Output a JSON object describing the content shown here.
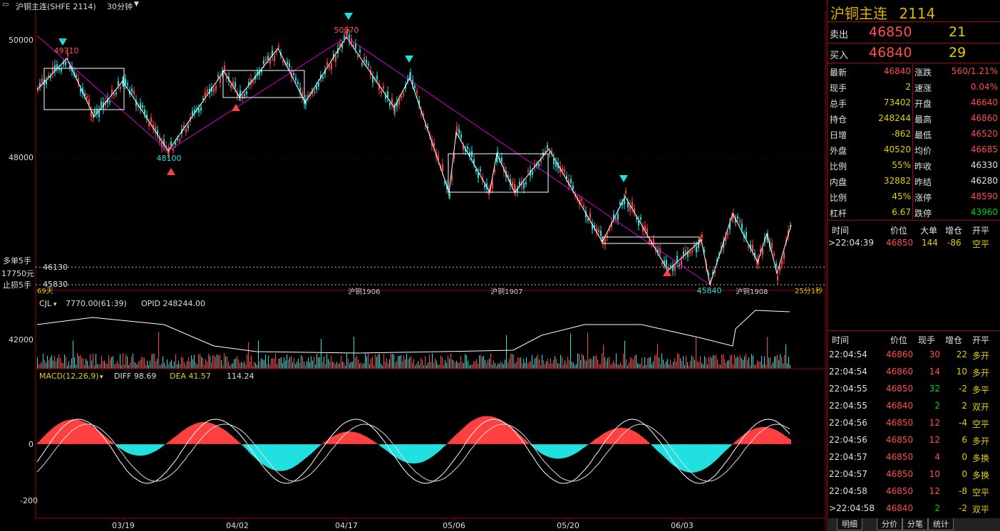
{
  "topbar": {
    "icon": "window-menu-icon",
    "symbol": "沪铜主连(SHFE 2114)",
    "period": "30分钟",
    "period_arrow": "chevron-down-icon"
  },
  "price_axis": {
    "labels": [
      "50000",
      "48000"
    ]
  },
  "annotations": {
    "high_label": "50070",
    "label_49710": "49710",
    "label_48100": "48100",
    "label_45840": "45840",
    "order_long": "多单5手",
    "order_amount": "17750元",
    "order_stop": "止损5手",
    "level_46130": "46130",
    "level_45830": "45830",
    "contract_1906": "沪铜1906",
    "contract_1907": "沪铜1907",
    "contract_1908": "沪铜1908",
    "days": "69天",
    "countdown": "25分1秒"
  },
  "volume": {
    "indicator": "CJL",
    "value": "7770.00(61:39)",
    "opid": "OPID 248244.00",
    "axis_label": "42000"
  },
  "macd": {
    "indicator": "MACD(12,26,9)",
    "diff": "DIFF 98.69",
    "dea": "DEA 41.57",
    "macd_value": "114.24",
    "axis_labels": [
      "0",
      "-200"
    ]
  },
  "date_axis": [
    "03/19",
    "04/02",
    "04/17",
    "05/06",
    "05/20",
    "06/03"
  ],
  "quote": {
    "title": "沪铜主连",
    "code": "2114",
    "ask_label": "卖出",
    "ask_price": "46850",
    "ask_vol": "21",
    "bid_label": "买入",
    "bid_price": "46840",
    "bid_vol": "29",
    "stats": [
      {
        "l1": "最新",
        "v1": "46840",
        "c1": "red",
        "l2": "涨跌",
        "v2": "560/1.21%",
        "c2": "red"
      },
      {
        "l1": "现手",
        "v1": "2",
        "c1": "yel",
        "l2": "速涨",
        "v2": "0.04%",
        "c2": "red"
      },
      {
        "l1": "总手",
        "v1": "73402",
        "c1": "yel",
        "l2": "开盘",
        "v2": "46640",
        "c2": "red"
      },
      {
        "l1": "持仓",
        "v1": "248244",
        "c1": "yel",
        "l2": "最高",
        "v2": "46860",
        "c2": "red"
      },
      {
        "l1": "日增",
        "v1": "-862",
        "c1": "yel",
        "l2": "最低",
        "v2": "46520",
        "c2": "red"
      },
      {
        "l1": "外盘",
        "v1": "40520",
        "c1": "yel",
        "l2": "均价",
        "v2": "46685",
        "c2": "red"
      },
      {
        "l1": "比例",
        "v1": "55%",
        "c1": "yel",
        "l2": "昨收",
        "v2": "46330",
        "c2": "wht"
      },
      {
        "l1": "内盘",
        "v1": "32882",
        "c1": "yel",
        "l2": "昨结",
        "v2": "46280",
        "c2": "wht"
      },
      {
        "l1": "比例",
        "v1": "45%",
        "c1": "yel",
        "l2": "涨停",
        "v2": "48590",
        "c2": "red"
      },
      {
        "l1": "杠杆",
        "v1": "6.67",
        "c1": "yel",
        "l2": "跌停",
        "v2": "43960",
        "c2": "grn"
      }
    ],
    "big_header": {
      "time": "时间",
      "price": "价位",
      "big": "大单",
      "chg": "增仓",
      "type": "开平"
    },
    "big_row": {
      "time": ">22:04:39",
      "price": "46850",
      "big": "144",
      "chg": "-86",
      "type": "空平"
    },
    "tick_header": {
      "time": "时间",
      "price": "价位",
      "vol": "现手",
      "chg": "增仓",
      "type": "开平"
    },
    "ticks": [
      {
        "time": "22:04:54",
        "price": "46860",
        "vol": "30",
        "chg": "22",
        "type": "多开",
        "vc": "red",
        "cc": "yel",
        "tc": "yel"
      },
      {
        "time": "22:04:54",
        "price": "46860",
        "vol": "14",
        "chg": "10",
        "type": "多开",
        "vc": "red",
        "cc": "yel",
        "tc": "yel"
      },
      {
        "time": "22:04:55",
        "price": "46850",
        "vol": "32",
        "chg": "-2",
        "type": "多平",
        "vc": "grn",
        "cc": "yel",
        "tc": "yel"
      },
      {
        "time": "22:04:55",
        "price": "46840",
        "vol": "2",
        "chg": "2",
        "type": "双开",
        "vc": "grn",
        "cc": "yel",
        "tc": "yel"
      },
      {
        "time": "22:04:56",
        "price": "46850",
        "vol": "12",
        "chg": "-4",
        "type": "空平",
        "vc": "red",
        "cc": "yel",
        "tc": "yel"
      },
      {
        "time": "22:04:56",
        "price": "46850",
        "vol": "12",
        "chg": "6",
        "type": "多开",
        "vc": "red",
        "cc": "yel",
        "tc": "yel"
      },
      {
        "time": "22:04:57",
        "price": "46850",
        "vol": "4",
        "chg": "0",
        "type": "多换",
        "vc": "red",
        "cc": "yel",
        "tc": "yel"
      },
      {
        "time": "22:04:57",
        "price": "46850",
        "vol": "10",
        "chg": "0",
        "type": "多换",
        "vc": "red",
        "cc": "yel",
        "tc": "yel"
      },
      {
        "time": "22:04:58",
        "price": "46850",
        "vol": "12",
        "chg": "-8",
        "type": "空平",
        "vc": "red",
        "cc": "yel",
        "tc": "yel"
      },
      {
        "time": ">22:04:58",
        "price": "46840",
        "vol": "2",
        "chg": "-2",
        "type": "双平",
        "vc": "grn",
        "cc": "yel",
        "tc": "yel"
      }
    ],
    "tabs": [
      "明细",
      "分价",
      "分笔",
      "统计"
    ]
  },
  "colors": {
    "up": "#ff4040",
    "down": "#20e0e0",
    "zigzag": "#ffffff",
    "trend": "#d000d0",
    "axis": "#a00000"
  },
  "chart_data": {
    "type": "line",
    "title": "沪铜主连(SHFE 2114)",
    "x": [
      "03/19",
      "04/02",
      "04/17",
      "05/06",
      "05/20",
      "06/03"
    ],
    "series": [
      {
        "values": [
          49710,
          48100,
          50070,
          48100,
          45840,
          46840
        ]
      }
    ],
    "ylim": [
      45600,
      50500
    ],
    "grid": true
  }
}
